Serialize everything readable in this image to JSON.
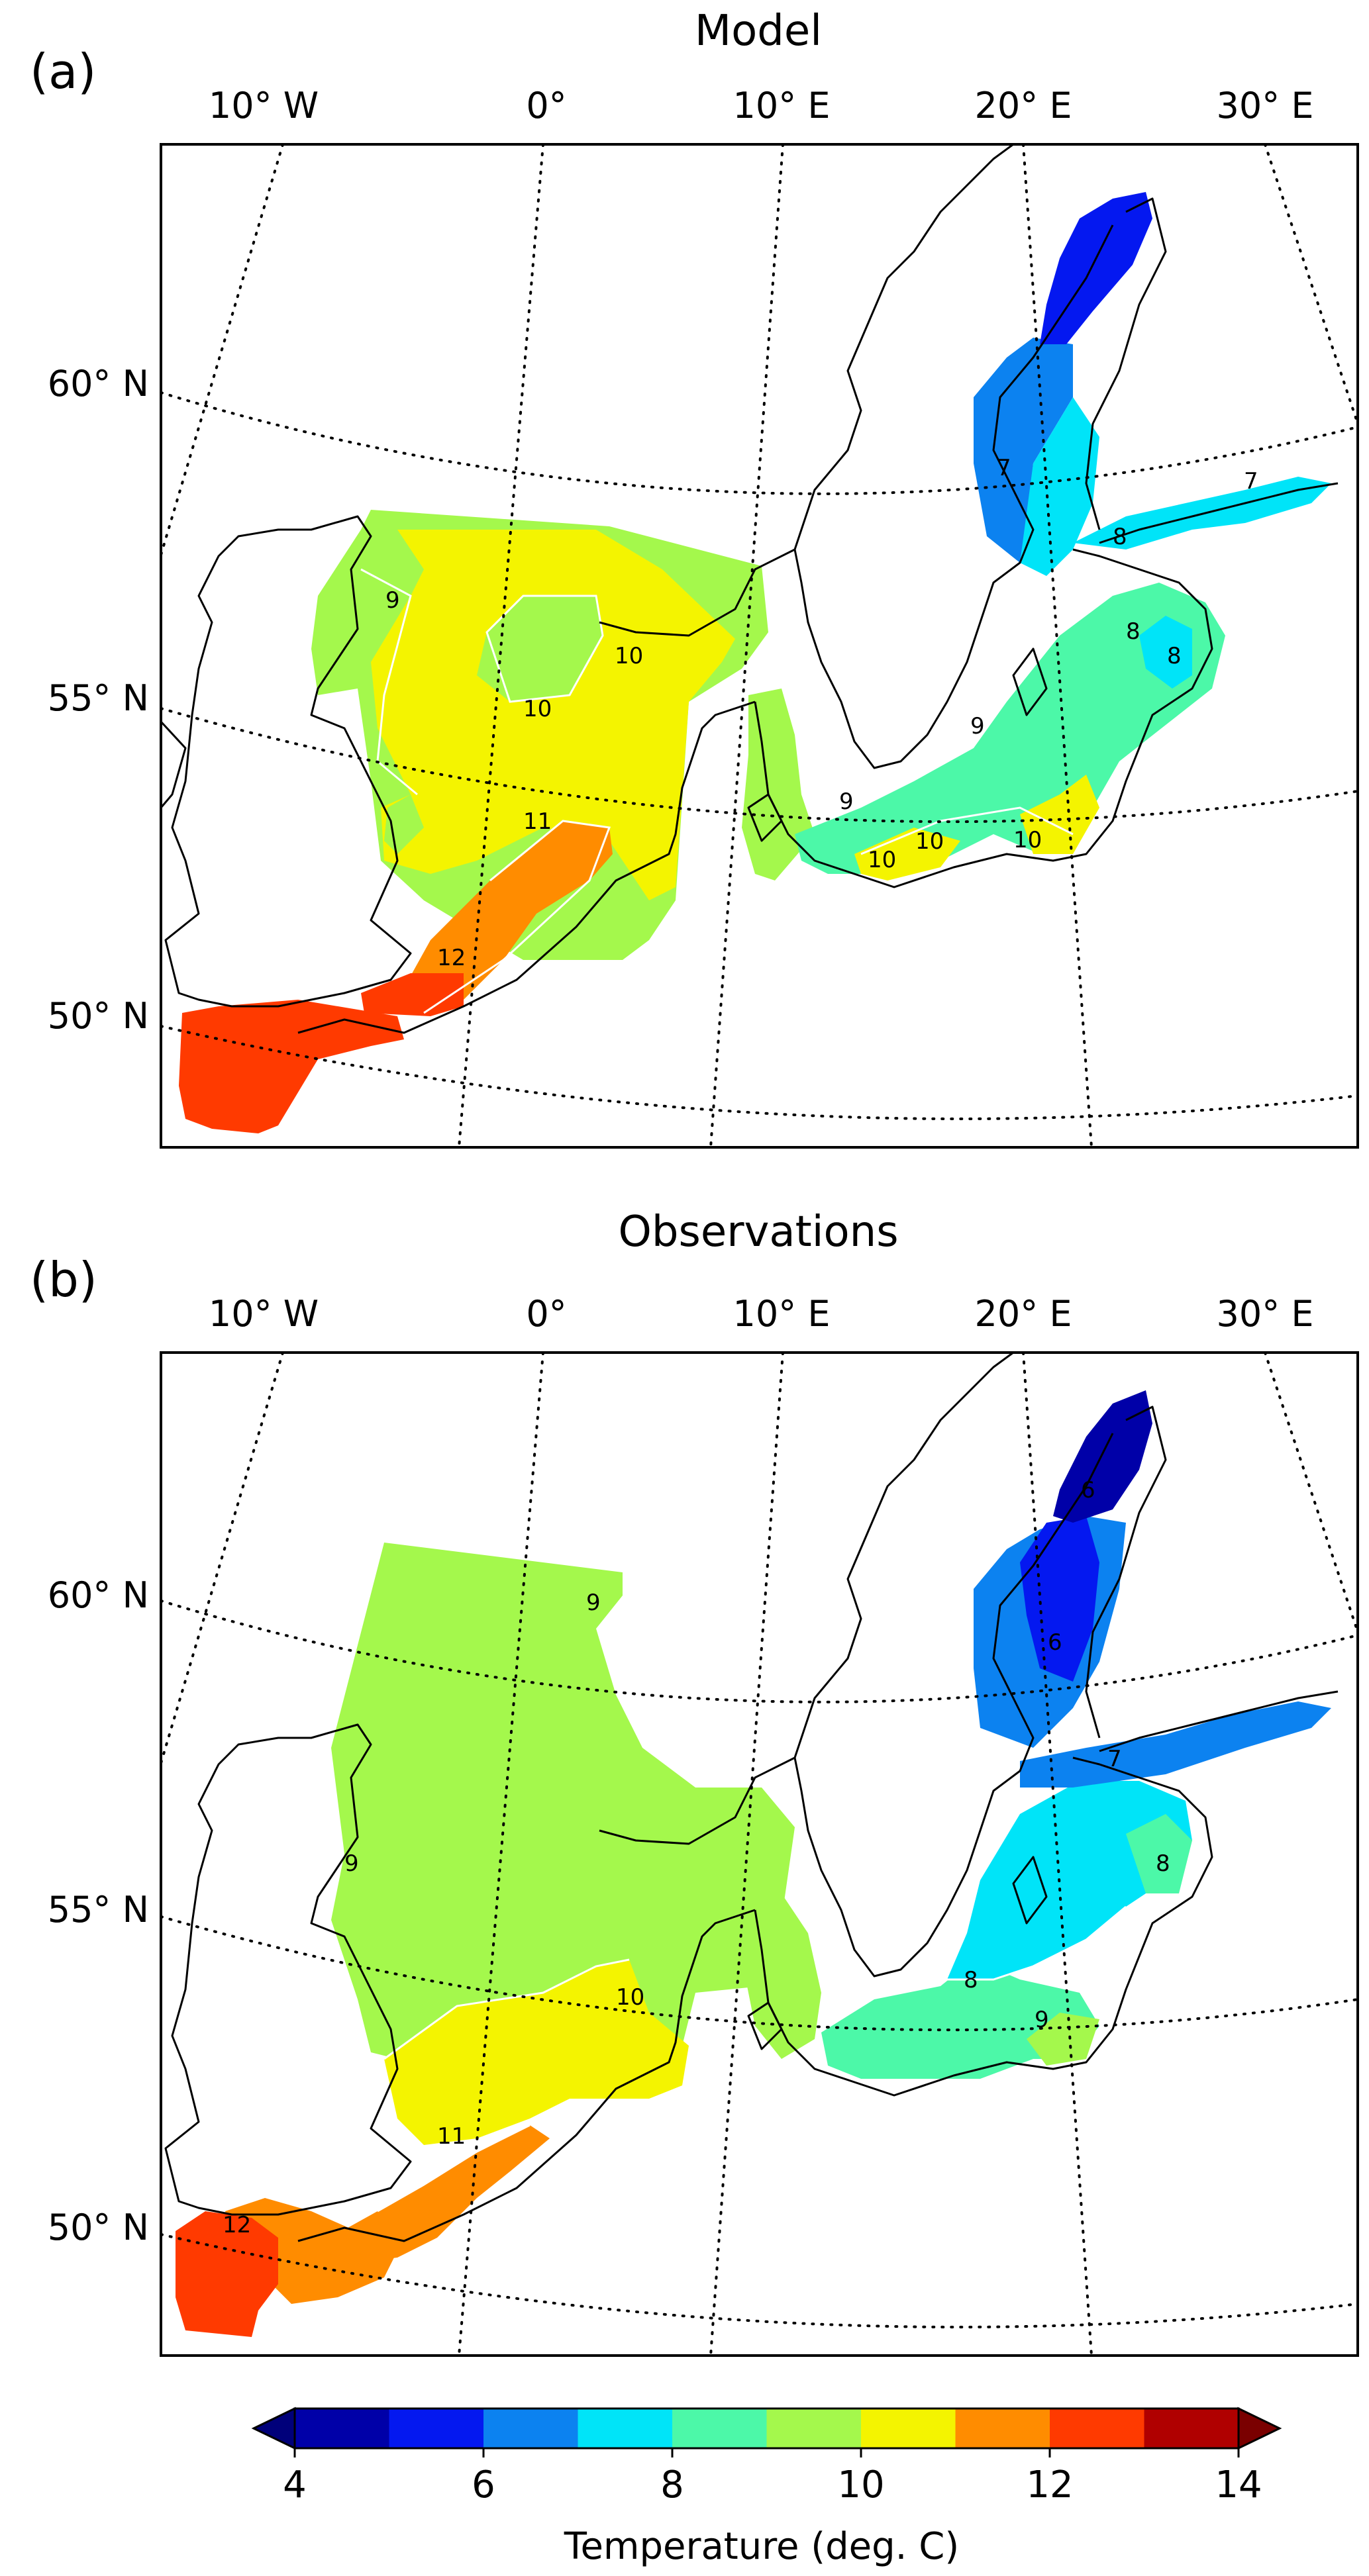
{
  "panels": [
    {
      "letter": "(a)",
      "title": "Model",
      "lon_labels": [
        "10° W",
        "0°",
        "10° E",
        "20° E",
        "30° E"
      ],
      "lat_labels": [
        "60° N",
        "55° N",
        "50° N"
      ],
      "contour_labels": [
        "9",
        "10",
        "10",
        "11",
        "12",
        "9",
        "10",
        "10",
        "10",
        "7",
        "8",
        "8",
        "8",
        "7",
        "9"
      ]
    },
    {
      "letter": "(b)",
      "title": "Observations",
      "lon_labels": [
        "10° W",
        "0°",
        "10° E",
        "20° E",
        "30° E"
      ],
      "lat_labels": [
        "60° N",
        "55° N",
        "50° N"
      ],
      "contour_labels": [
        "9",
        "9",
        "10",
        "11",
        "12",
        "7",
        "8",
        "8",
        "9",
        "6",
        "6"
      ]
    }
  ],
  "colorbar": {
    "label": "Temperature (deg. C)",
    "ticks": [
      "4",
      "6",
      "8",
      "10",
      "12",
      "14"
    ],
    "min": 4,
    "max": 14,
    "bins": [
      {
        "from": 4,
        "to": 5,
        "color": "#0000a8"
      },
      {
        "from": 5,
        "to": 6,
        "color": "#0418f0"
      },
      {
        "from": 6,
        "to": 7,
        "color": "#0c82f0"
      },
      {
        "from": 7,
        "to": 8,
        "color": "#00e4f8"
      },
      {
        "from": 8,
        "to": 9,
        "color": "#4cf8a8"
      },
      {
        "from": 9,
        "to": 10,
        "color": "#a4f84c"
      },
      {
        "from": 10,
        "to": 11,
        "color": "#f4f400"
      },
      {
        "from": 11,
        "to": 12,
        "color": "#ff8c00"
      },
      {
        "from": 12,
        "to": 13,
        "color": "#ff3a00"
      },
      {
        "from": 13,
        "to": 14,
        "color": "#b00000"
      }
    ],
    "under_color": "#00007a",
    "over_color": "#7a0000"
  }
}
